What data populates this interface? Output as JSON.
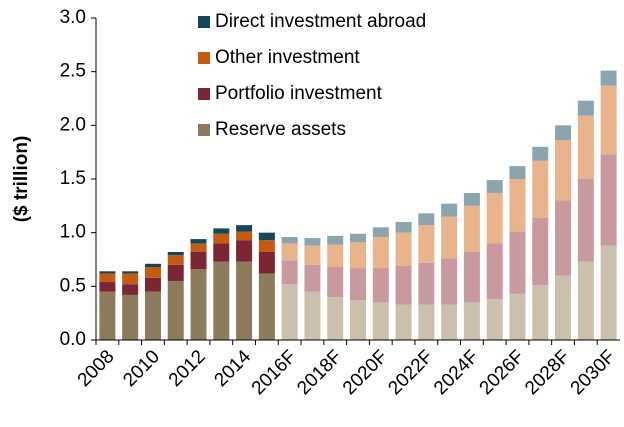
{
  "chart_data": {
    "type": "stacked_bar",
    "y_label": "($ trillion)",
    "categories": [
      "2008",
      null,
      "2010",
      null,
      "2012",
      null,
      "2014",
      null,
      "2016F",
      null,
      "2018F",
      null,
      "2020F",
      null,
      "2022F",
      null,
      "2024F",
      null,
      "2026F",
      null,
      "2028F",
      null,
      "2030F"
    ],
    "series": [
      {
        "name": "Reserve assets",
        "color": "#8c7b5c",
        "forecast_color": "#cbc0ad",
        "values": [
          0.45,
          0.42,
          0.45,
          0.55,
          0.66,
          0.73,
          0.73,
          0.62,
          0.52,
          0.45,
          0.4,
          0.37,
          0.35,
          0.33,
          0.33,
          0.33,
          0.35,
          0.38,
          0.43,
          0.51,
          0.6,
          0.73,
          0.88
        ]
      },
      {
        "name": "Portfolio investment",
        "color": "#7b2535",
        "forecast_color": "#c89aa0",
        "values": [
          0.09,
          0.1,
          0.13,
          0.15,
          0.16,
          0.17,
          0.2,
          0.2,
          0.22,
          0.25,
          0.28,
          0.3,
          0.32,
          0.36,
          0.39,
          0.43,
          0.47,
          0.52,
          0.58,
          0.63,
          0.7,
          0.77,
          0.85
        ]
      },
      {
        "name": "Other investment",
        "color": "#c55a11",
        "forecast_color": "#e9b38c",
        "values": [
          0.08,
          0.1,
          0.1,
          0.09,
          0.08,
          0.09,
          0.08,
          0.11,
          0.16,
          0.18,
          0.21,
          0.24,
          0.29,
          0.31,
          0.35,
          0.39,
          0.43,
          0.47,
          0.49,
          0.53,
          0.56,
          0.59,
          0.64
        ]
      },
      {
        "name": "Direct investment abroad",
        "color": "#14475b",
        "forecast_color": "#8ca4ae",
        "values": [
          0.02,
          0.02,
          0.03,
          0.03,
          0.04,
          0.05,
          0.06,
          0.07,
          0.06,
          0.07,
          0.08,
          0.08,
          0.09,
          0.1,
          0.11,
          0.12,
          0.12,
          0.12,
          0.12,
          0.13,
          0.14,
          0.14,
          0.14
        ]
      }
    ],
    "ylim": [
      0,
      3.0
    ],
    "yticks": [
      {
        "value": 0,
        "label": "0.0"
      },
      0.5,
      {
        "value": 1,
        "label": "1.0"
      },
      1.5,
      {
        "value": 2,
        "label": "2.0"
      },
      2.5,
      {
        "value": 3,
        "label": "3.0"
      }
    ],
    "legend": "upper left"
  }
}
